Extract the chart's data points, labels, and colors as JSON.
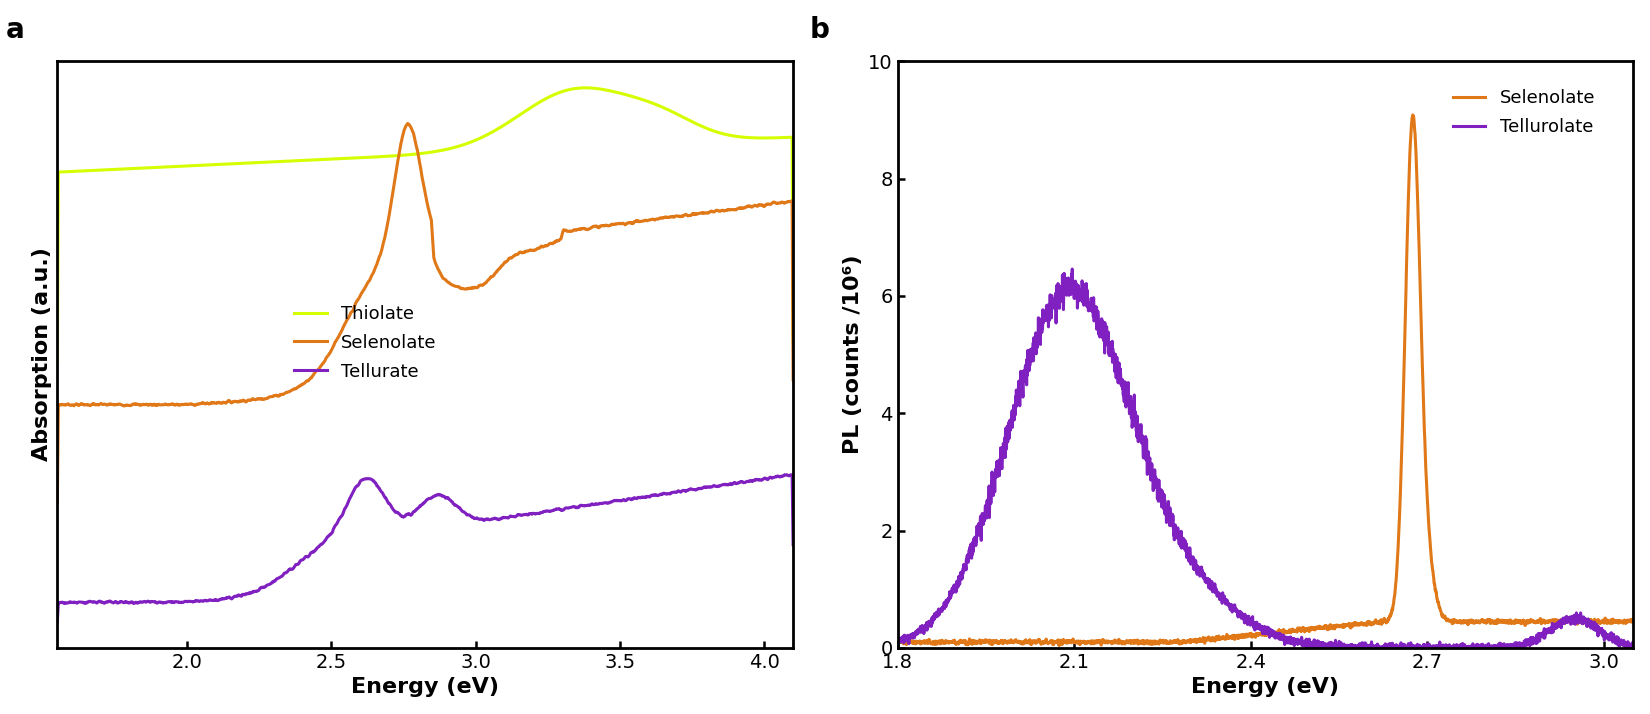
{
  "panel_a": {
    "title": "a",
    "xlabel": "Energy (eV)",
    "ylabel": "Absorption (a.u.)",
    "xlim": [
      1.55,
      4.1
    ],
    "xticks": [
      2.0,
      2.5,
      3.0,
      3.5,
      4.0
    ],
    "legend": [
      "Thiolate",
      "Selenolate",
      "Tellurate"
    ],
    "colors": {
      "thiolate": "#d4ff00",
      "selenolate": "#e07818",
      "tellurate": "#8020c0"
    }
  },
  "panel_b": {
    "title": "b",
    "xlabel": "Energy (eV)",
    "ylabel": "PL (counts /10⁶)",
    "xlim": [
      1.8,
      3.05
    ],
    "ylim": [
      0,
      10
    ],
    "xticks": [
      1.8,
      2.1,
      2.4,
      2.7,
      3.0
    ],
    "yticks": [
      0,
      2,
      4,
      6,
      8,
      10
    ],
    "legend": [
      "Selenolate",
      "Tellurolate"
    ],
    "colors": {
      "selenolate": "#e07818",
      "tellurolate": "#8020c0"
    }
  },
  "background_color": "#ffffff",
  "label_fontsize": 16,
  "tick_fontsize": 14,
  "legend_fontsize": 13,
  "panel_label_fontsize": 20,
  "line_width": 2.2
}
